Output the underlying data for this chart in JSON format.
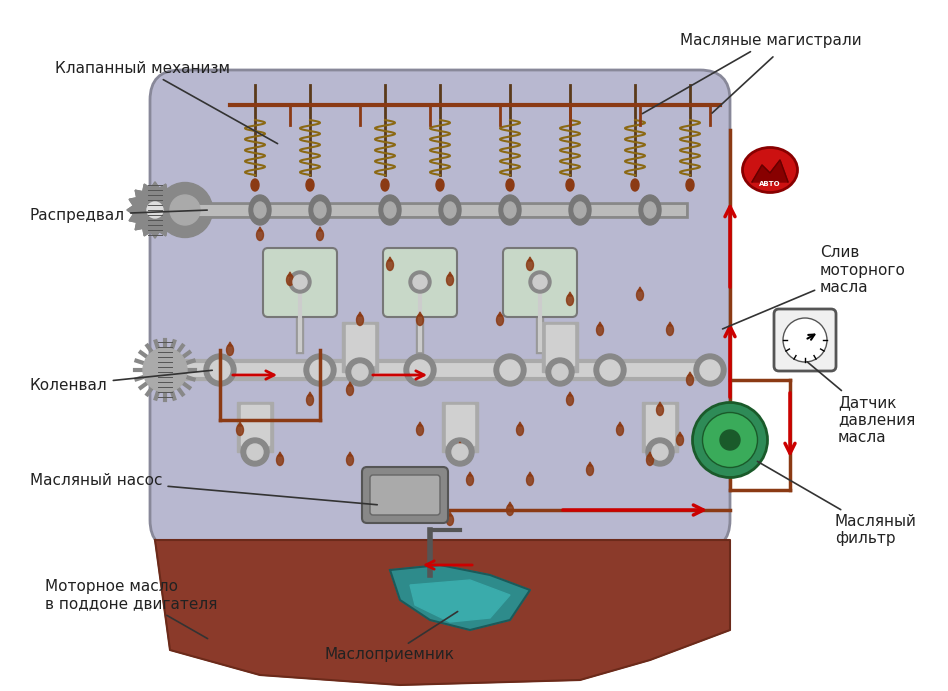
{
  "title": "",
  "background_color": "#ffffff",
  "engine_body_color": "#b8b8d0",
  "engine_body_edge": "#888899",
  "oil_pan_color": "#8B3A2A",
  "oil_pan_edge": "#6B2A1A",
  "crankshaft_color": "#c0c0c0",
  "piston_color": "#b0c8b0",
  "valve_spring_color": "#8B6914",
  "oil_line_color": "#8B3A14",
  "oil_arrow_color": "#cc0000",
  "annotation_line_color": "#333333",
  "annotation_text_color": "#222222",
  "oil_drop_color": "#8B3A14",
  "filter_color": "#2E8B57",
  "gauge_color": "#444444",
  "logo_bg": "#cc1111",
  "labels": {
    "valve_mechanism": "Клапанный механизм",
    "camshaft": "Распредвал",
    "crankshaft": "Коленвал",
    "oil_pump": "Масляный насос",
    "oil_in_pan": "Моторное масло\nв поддоне двигателя",
    "oil_pickup": "Маслоприемник",
    "oil_filter": "Масляный\nфильтр",
    "pressure_sensor": "Датчик\nдавления\nмасла",
    "oil_drain": "Слив\nмоторного\nмасла",
    "oil_mains": "Масляные магистрали"
  },
  "figsize": [
    9.48,
    6.91
  ],
  "dpi": 100
}
